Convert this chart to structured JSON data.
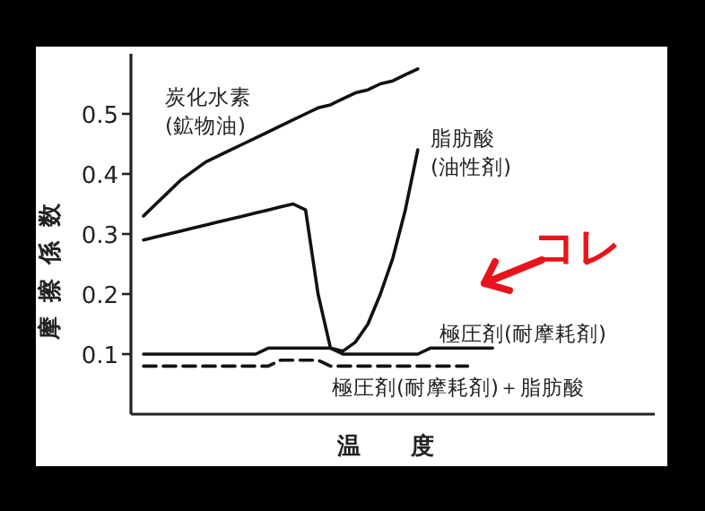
{
  "chart_data": {
    "type": "line",
    "xlabel": "温度",
    "ylabel": "摩擦係数",
    "categories": [
      null,
      null,
      null,
      null,
      null,
      null,
      null,
      null,
      null,
      null,
      null,
      null,
      null,
      null,
      null,
      null,
      null,
      null,
      null,
      null,
      null,
      null,
      null,
      null,
      null,
      null,
      null,
      null,
      null,
      null,
      null,
      null,
      null,
      null,
      null,
      null,
      null,
      null,
      null,
      null,
      null
    ],
    "ylim": [
      0,
      0.6
    ],
    "yticks": [
      0.1,
      0.2,
      0.3,
      0.4,
      0.5
    ],
    "marker": "none",
    "annotations": [
      "コレ"
    ],
    "series": [
      {
        "name": "炭化水素 (鉱物油)",
        "color": "#111111",
        "line_style": "solid",
        "values": [
          0.33,
          0.35,
          0.37,
          0.39,
          0.405,
          0.42,
          0.43,
          0.44,
          0.45,
          0.46,
          0.47,
          0.48,
          0.49,
          0.5,
          0.51,
          0.515,
          0.525,
          0.535,
          0.54,
          0.55,
          0.555,
          0.565,
          0.575,
          null,
          null,
          null,
          null,
          null,
          null,
          null,
          null,
          null,
          null,
          null,
          null,
          null,
          null,
          null,
          null,
          null,
          null
        ]
      },
      {
        "name": "脂肪酸 (油性剤)",
        "color": "#111111",
        "line_style": "solid",
        "values": [
          0.29,
          0.295,
          0.3,
          0.305,
          0.31,
          0.315,
          0.32,
          0.325,
          0.33,
          0.335,
          0.34,
          0.345,
          0.35,
          0.34,
          0.2,
          0.11,
          0.105,
          0.12,
          0.15,
          0.2,
          0.26,
          0.34,
          0.44,
          null,
          null,
          null,
          null,
          null,
          null,
          null,
          null,
          null,
          null,
          null,
          null,
          null,
          null,
          null,
          null,
          null,
          null
        ]
      },
      {
        "name": "極圧剤(耐摩耗剤)",
        "color": "#111111",
        "line_style": "solid",
        "values": [
          0.1,
          0.1,
          0.1,
          0.1,
          0.1,
          0.1,
          0.1,
          0.1,
          0.1,
          0.1,
          0.11,
          0.11,
          0.11,
          0.11,
          0.11,
          0.11,
          0.1,
          0.1,
          0.1,
          0.1,
          0.1,
          0.1,
          0.1,
          0.11,
          0.11,
          0.11,
          0.11,
          0.11,
          0.11,
          null,
          null,
          null,
          null,
          null,
          null,
          null,
          null,
          null,
          null,
          null,
          null
        ]
      },
      {
        "name": "極圧剤(耐摩耗剤)＋脂肪酸",
        "color": "#111111",
        "line_style": "dashed",
        "values": [
          0.08,
          0.08,
          0.08,
          0.08,
          0.08,
          0.08,
          0.08,
          0.08,
          0.08,
          0.08,
          0.08,
          0.09,
          0.09,
          0.09,
          0.09,
          0.08,
          0.08,
          0.08,
          0.08,
          0.08,
          0.08,
          0.08,
          0.08,
          0.08,
          0.08,
          0.08,
          0.08,
          null,
          null,
          null,
          null,
          null,
          null,
          null,
          null,
          null,
          null,
          null,
          null,
          null,
          null
        ]
      }
    ]
  }
}
